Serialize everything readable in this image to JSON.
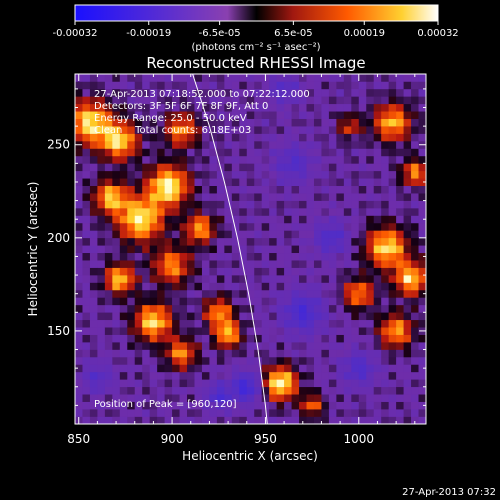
{
  "colorbar": {
    "tick_labels": [
      "-0.00032",
      "-0.00019",
      "-6.5e-05",
      "6.5e-05",
      "0.00019",
      "0.00032"
    ],
    "tick_values": [
      -0.00032,
      -0.00019,
      -6.5e-05,
      6.5e-05,
      0.00019,
      0.00032
    ],
    "range": [
      -0.00032,
      0.00032
    ],
    "unit_label": "(photons cm⁻² s⁻¹ asec⁻²)",
    "colors": [
      "#1a10ff",
      "#4b2bd6",
      "#7a3fb8",
      "#000000",
      "#b81d10",
      "#ff7a00",
      "#ffe040",
      "#ffffff"
    ]
  },
  "chart_data": {
    "type": "heatmap",
    "title": "Reconstructed RHESSI Image",
    "xlabel": "Heliocentric X (arcsec)",
    "ylabel": "Heliocentric Y (arcsec)",
    "xlim": [
      848,
      1036
    ],
    "ylim": [
      100,
      288
    ],
    "x_ticks": [
      850,
      900,
      950,
      1000
    ],
    "x_tick_labels": [
      "850",
      "900",
      "950",
      "1000"
    ],
    "y_ticks": [
      150,
      200,
      250
    ],
    "y_tick_labels": [
      "150",
      "200",
      "250"
    ],
    "annotations": [
      "27-Apr-2013 07:18:52.000 to 07:22:12.000",
      "Detectors: 3F 5F 6F 7F 8F 9F, Att 0",
      "Energy Range: 25.0 - 50.0 keV",
      "Clean    Total counts: 6.18E+03"
    ],
    "peak_label": "Position of Peak = [960,120]",
    "peak": [
      960,
      120
    ],
    "limb_curve": [
      [
        911,
        288
      ],
      [
        920,
        260
      ],
      [
        928,
        230
      ],
      [
        935,
        200
      ],
      [
        941,
        170
      ],
      [
        946,
        140
      ],
      [
        950,
        110
      ],
      [
        951,
        100
      ]
    ],
    "blobs": [
      {
        "x": 856,
        "y": 262,
        "v": 0.9,
        "r": 12
      },
      {
        "x": 872,
        "y": 252,
        "v": 0.85,
        "r": 10
      },
      {
        "x": 905,
        "y": 258,
        "v": 0.7,
        "r": 9
      },
      {
        "x": 898,
        "y": 228,
        "v": 1.0,
        "r": 11
      },
      {
        "x": 883,
        "y": 210,
        "v": 0.95,
        "r": 12
      },
      {
        "x": 867,
        "y": 222,
        "v": 0.8,
        "r": 9
      },
      {
        "x": 915,
        "y": 205,
        "v": 0.75,
        "r": 8
      },
      {
        "x": 900,
        "y": 185,
        "v": 0.7,
        "r": 10
      },
      {
        "x": 872,
        "y": 178,
        "v": 0.85,
        "r": 8
      },
      {
        "x": 925,
        "y": 160,
        "v": 0.7,
        "r": 8
      },
      {
        "x": 890,
        "y": 155,
        "v": 0.9,
        "r": 10
      },
      {
        "x": 905,
        "y": 138,
        "v": 0.7,
        "r": 8
      },
      {
        "x": 930,
        "y": 148,
        "v": 0.8,
        "r": 7
      },
      {
        "x": 958,
        "y": 122,
        "v": 1.0,
        "r": 9
      },
      {
        "x": 975,
        "y": 110,
        "v": 0.6,
        "r": 6
      },
      {
        "x": 1018,
        "y": 262,
        "v": 0.8,
        "r": 10
      },
      {
        "x": 1030,
        "y": 235,
        "v": 0.7,
        "r": 7
      },
      {
        "x": 1015,
        "y": 195,
        "v": 0.9,
        "r": 11
      },
      {
        "x": 1028,
        "y": 178,
        "v": 0.85,
        "r": 9
      },
      {
        "x": 1000,
        "y": 170,
        "v": 0.7,
        "r": 8
      },
      {
        "x": 1020,
        "y": 150,
        "v": 0.75,
        "r": 9
      },
      {
        "x": 995,
        "y": 260,
        "v": 0.5,
        "r": 6
      },
      {
        "x": 985,
        "y": 200,
        "v": -0.5,
        "r": 9
      },
      {
        "x": 965,
        "y": 240,
        "v": -0.45,
        "r": 10
      },
      {
        "x": 970,
        "y": 160,
        "v": -0.6,
        "r": 11
      },
      {
        "x": 940,
        "y": 120,
        "v": -0.7,
        "r": 8
      },
      {
        "x": 1000,
        "y": 130,
        "v": -0.5,
        "r": 9
      },
      {
        "x": 860,
        "y": 125,
        "v": -0.4,
        "r": 8
      },
      {
        "x": 960,
        "y": 280,
        "v": -0.4,
        "r": 8
      },
      {
        "x": 925,
        "y": 115,
        "v": -0.55,
        "r": 7
      }
    ]
  },
  "footer": {
    "timestamp": "27-Apr-2013 07:32"
  }
}
